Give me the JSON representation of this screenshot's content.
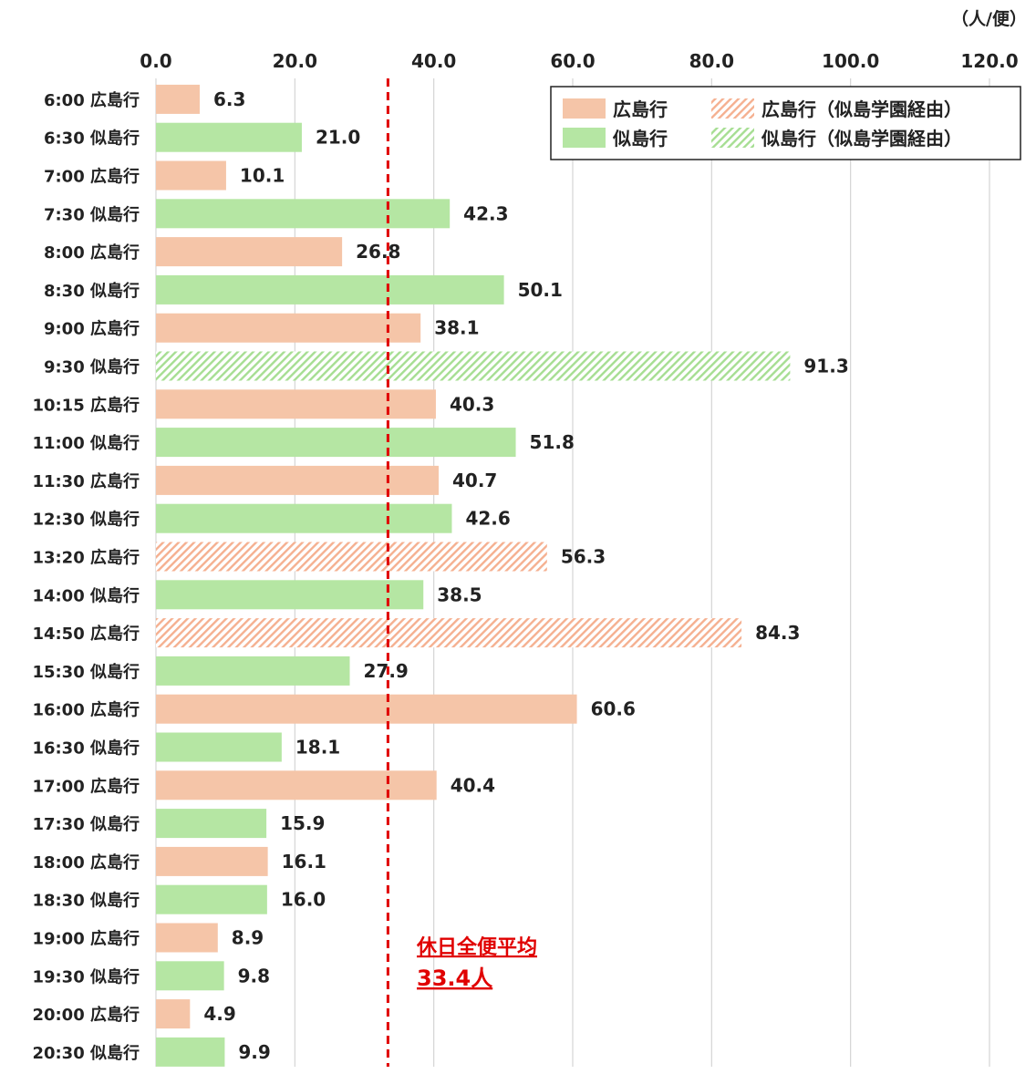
{
  "chart_data": {
    "type": "bar",
    "orientation": "horizontal",
    "unit_label": "（人/便）",
    "xlim": [
      0,
      120
    ],
    "x_ticks": [
      "0.0",
      "20.0",
      "40.0",
      "60.0",
      "80.0",
      "100.0",
      "120.0"
    ],
    "grid": true,
    "legend_position": "top-right",
    "legend": [
      {
        "label": "広島行",
        "color": "#F5C5A8",
        "pattern": "solid"
      },
      {
        "label": "広島行（似島学園経由）",
        "color": "#F5C5A8",
        "pattern": "hatched"
      },
      {
        "label": "似島行",
        "color": "#B5E6A3",
        "pattern": "solid"
      },
      {
        "label": "似島行（似島学園経由）",
        "color": "#B5E6A3",
        "pattern": "hatched"
      }
    ],
    "colors": {
      "hiroshima": "#F5C5A8",
      "ninoshima": "#B5E6A3",
      "average_line": "#E00000"
    },
    "average": {
      "value": 33.4,
      "label_line1": "休日全便平均",
      "label_line2": "33.4人"
    },
    "bars": [
      {
        "label": "6:00 広島行",
        "value": 6.3,
        "value_text": "6.3",
        "dest": "hiroshima",
        "via": false
      },
      {
        "label": "6:30 似島行",
        "value": 21.0,
        "value_text": "21.0",
        "dest": "ninoshima",
        "via": false
      },
      {
        "label": "7:00 広島行",
        "value": 10.1,
        "value_text": "10.1",
        "dest": "hiroshima",
        "via": false
      },
      {
        "label": "7:30 似島行",
        "value": 42.3,
        "value_text": "42.3",
        "dest": "ninoshima",
        "via": false
      },
      {
        "label": "8:00 広島行",
        "value": 26.8,
        "value_text": "26.8",
        "dest": "hiroshima",
        "via": false
      },
      {
        "label": "8:30 似島行",
        "value": 50.1,
        "value_text": "50.1",
        "dest": "ninoshima",
        "via": false
      },
      {
        "label": "9:00 広島行",
        "value": 38.1,
        "value_text": "38.1",
        "dest": "hiroshima",
        "via": false
      },
      {
        "label": "9:30 似島行",
        "value": 91.3,
        "value_text": "91.3",
        "dest": "ninoshima",
        "via": true
      },
      {
        "label": "10:15 広島行",
        "value": 40.3,
        "value_text": "40.3",
        "dest": "hiroshima",
        "via": false
      },
      {
        "label": "11:00 似島行",
        "value": 51.8,
        "value_text": "51.8",
        "dest": "ninoshima",
        "via": false
      },
      {
        "label": "11:30 広島行",
        "value": 40.7,
        "value_text": "40.7",
        "dest": "hiroshima",
        "via": false
      },
      {
        "label": "12:30 似島行",
        "value": 42.6,
        "value_text": "42.6",
        "dest": "ninoshima",
        "via": false
      },
      {
        "label": "13:20 広島行",
        "value": 56.3,
        "value_text": "56.3",
        "dest": "hiroshima",
        "via": true
      },
      {
        "label": "14:00 似島行",
        "value": 38.5,
        "value_text": "38.5",
        "dest": "ninoshima",
        "via": false
      },
      {
        "label": "14:50 広島行",
        "value": 84.3,
        "value_text": "84.3",
        "dest": "hiroshima",
        "via": true
      },
      {
        "label": "15:30 似島行",
        "value": 27.9,
        "value_text": "27.9",
        "dest": "ninoshima",
        "via": false
      },
      {
        "label": "16:00 広島行",
        "value": 60.6,
        "value_text": "60.6",
        "dest": "hiroshima",
        "via": false
      },
      {
        "label": "16:30 似島行",
        "value": 18.1,
        "value_text": "18.1",
        "dest": "ninoshima",
        "via": false
      },
      {
        "label": "17:00 広島行",
        "value": 40.4,
        "value_text": "40.4",
        "dest": "hiroshima",
        "via": false
      },
      {
        "label": "17:30 似島行",
        "value": 15.9,
        "value_text": "15.9",
        "dest": "ninoshima",
        "via": false
      },
      {
        "label": "18:00 広島行",
        "value": 16.1,
        "value_text": "16.1",
        "dest": "hiroshima",
        "via": false
      },
      {
        "label": "18:30 似島行",
        "value": 16.0,
        "value_text": "16.0",
        "dest": "ninoshima",
        "via": false
      },
      {
        "label": "19:00 広島行",
        "value": 8.9,
        "value_text": "8.9",
        "dest": "hiroshima",
        "via": false
      },
      {
        "label": "19:30 似島行",
        "value": 9.8,
        "value_text": "9.8",
        "dest": "ninoshima",
        "via": false
      },
      {
        "label": "20:00 広島行",
        "value": 4.9,
        "value_text": "4.9",
        "dest": "hiroshima",
        "via": false
      },
      {
        "label": "20:30 似島行",
        "value": 9.9,
        "value_text": "9.9",
        "dest": "ninoshima",
        "via": false
      }
    ]
  }
}
